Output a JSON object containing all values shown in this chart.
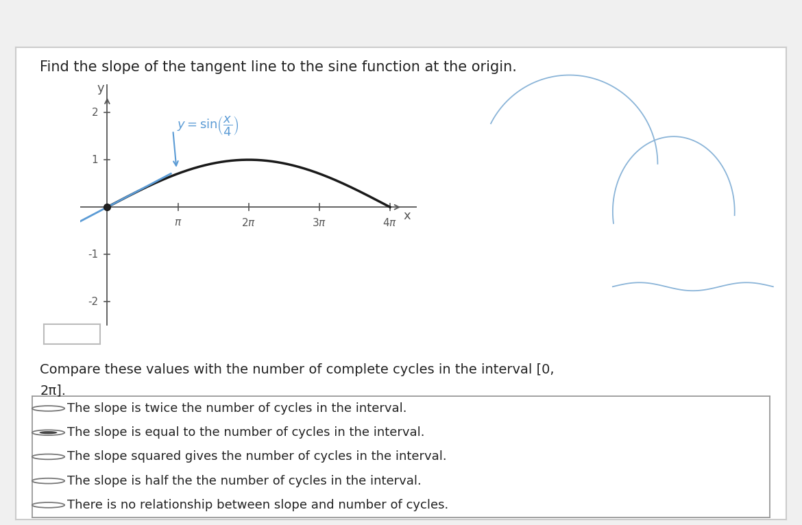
{
  "title": "Find the slope of the tangent line to the sine function at the origin.",
  "title_fontsize": 15,
  "compare_text1": "Compare these values with the number of complete cycles in the interval [0,",
  "compare_text2": "2π].",
  "options": [
    "The slope is twice the number of cycles in the interval.",
    "The slope is equal to the number of cycles in the interval.",
    "The slope squared gives the number of cycles in the interval.",
    "The slope is half the the number of cycles in the interval.",
    "There is no relationship between slope and number of cycles."
  ],
  "selected_option": 1,
  "bg_color": "#ffffff",
  "frame_color": "#cccccc",
  "curve_color": "#1a1a1a",
  "tangent_color": "#5b9bd5",
  "label_color": "#5b9bd5",
  "axis_color": "#555555",
  "tick_color": "#555555",
  "options_fontsize": 13,
  "compare_fontsize": 14,
  "text_color": "#222222",
  "sketch_color": "#8ab4d8",
  "options_border_color": "#999999"
}
